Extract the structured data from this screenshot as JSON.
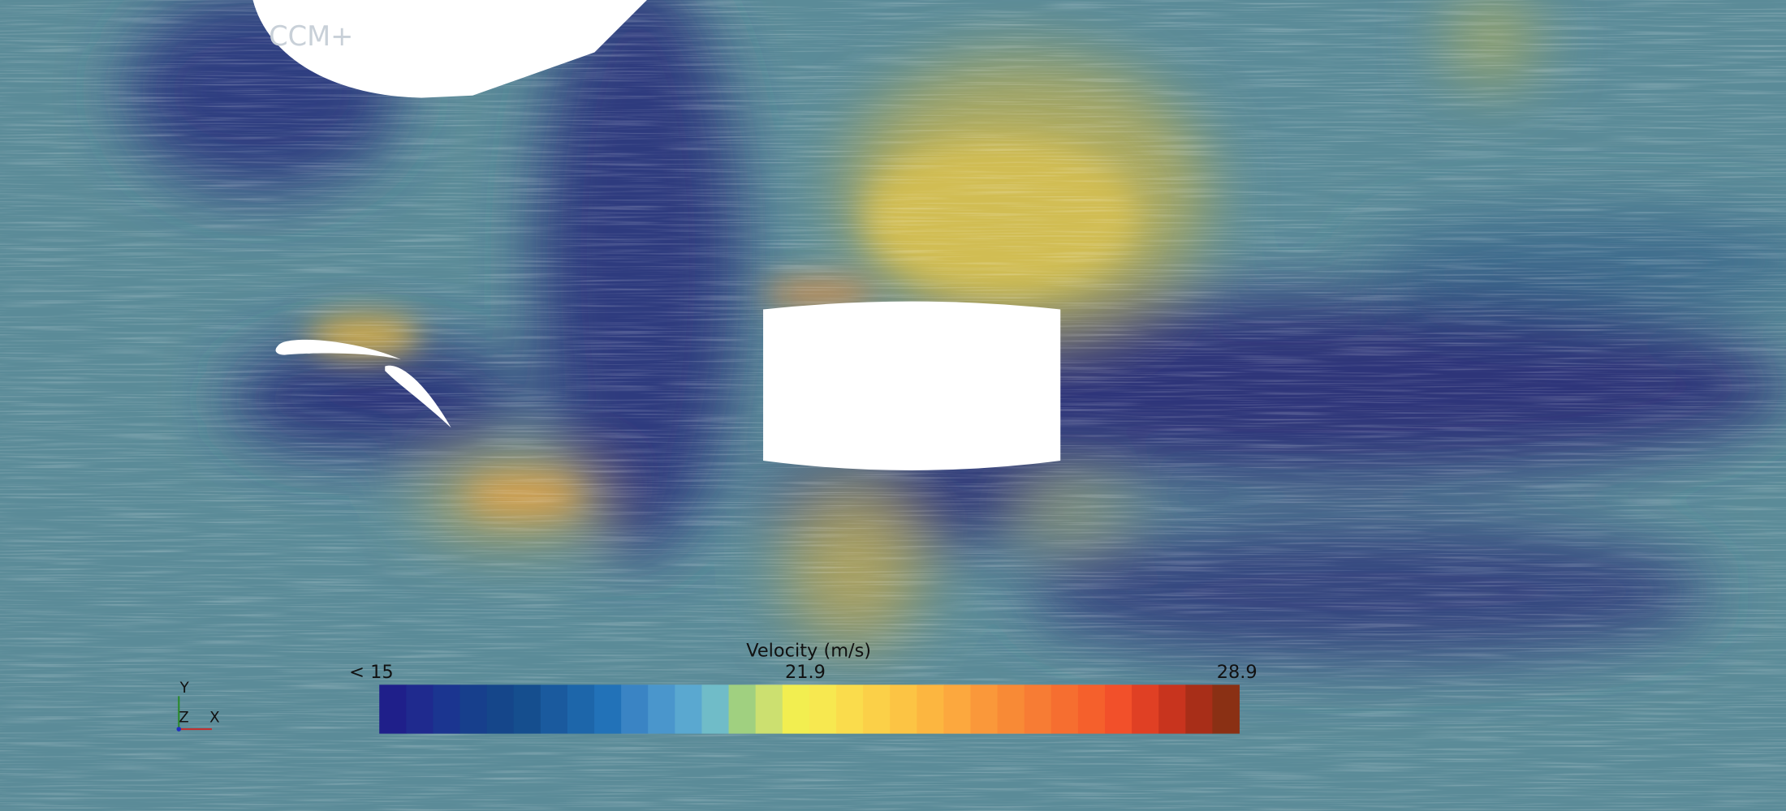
{
  "watermark": "CCM+",
  "colorbar": {
    "title": "Velocity (m/s)",
    "labels": [
      "< 15",
      "21.9",
      "28.9"
    ],
    "colors": [
      "#1f1f8a",
      "#1f2a8e",
      "#1b3590",
      "#173f8c",
      "#15468a",
      "#154e8e",
      "#1a5a9e",
      "#1d66aa",
      "#2272b8",
      "#3a84c4",
      "#4a96cc",
      "#5aa8d0",
      "#70bcc8",
      "#a0d080",
      "#cce070",
      "#f2ee50",
      "#f7e850",
      "#fadc4c",
      "#fbd048",
      "#fcc444",
      "#fcb640",
      "#fca83e",
      "#fa983a",
      "#f88a36",
      "#f77c34",
      "#f66e30",
      "#f5602c",
      "#f2502a",
      "#e04024",
      "#c8341e",
      "#a82e18",
      "#8a3014"
    ]
  },
  "axes": {
    "y": "Y",
    "z": "Z",
    "x": "X"
  }
}
